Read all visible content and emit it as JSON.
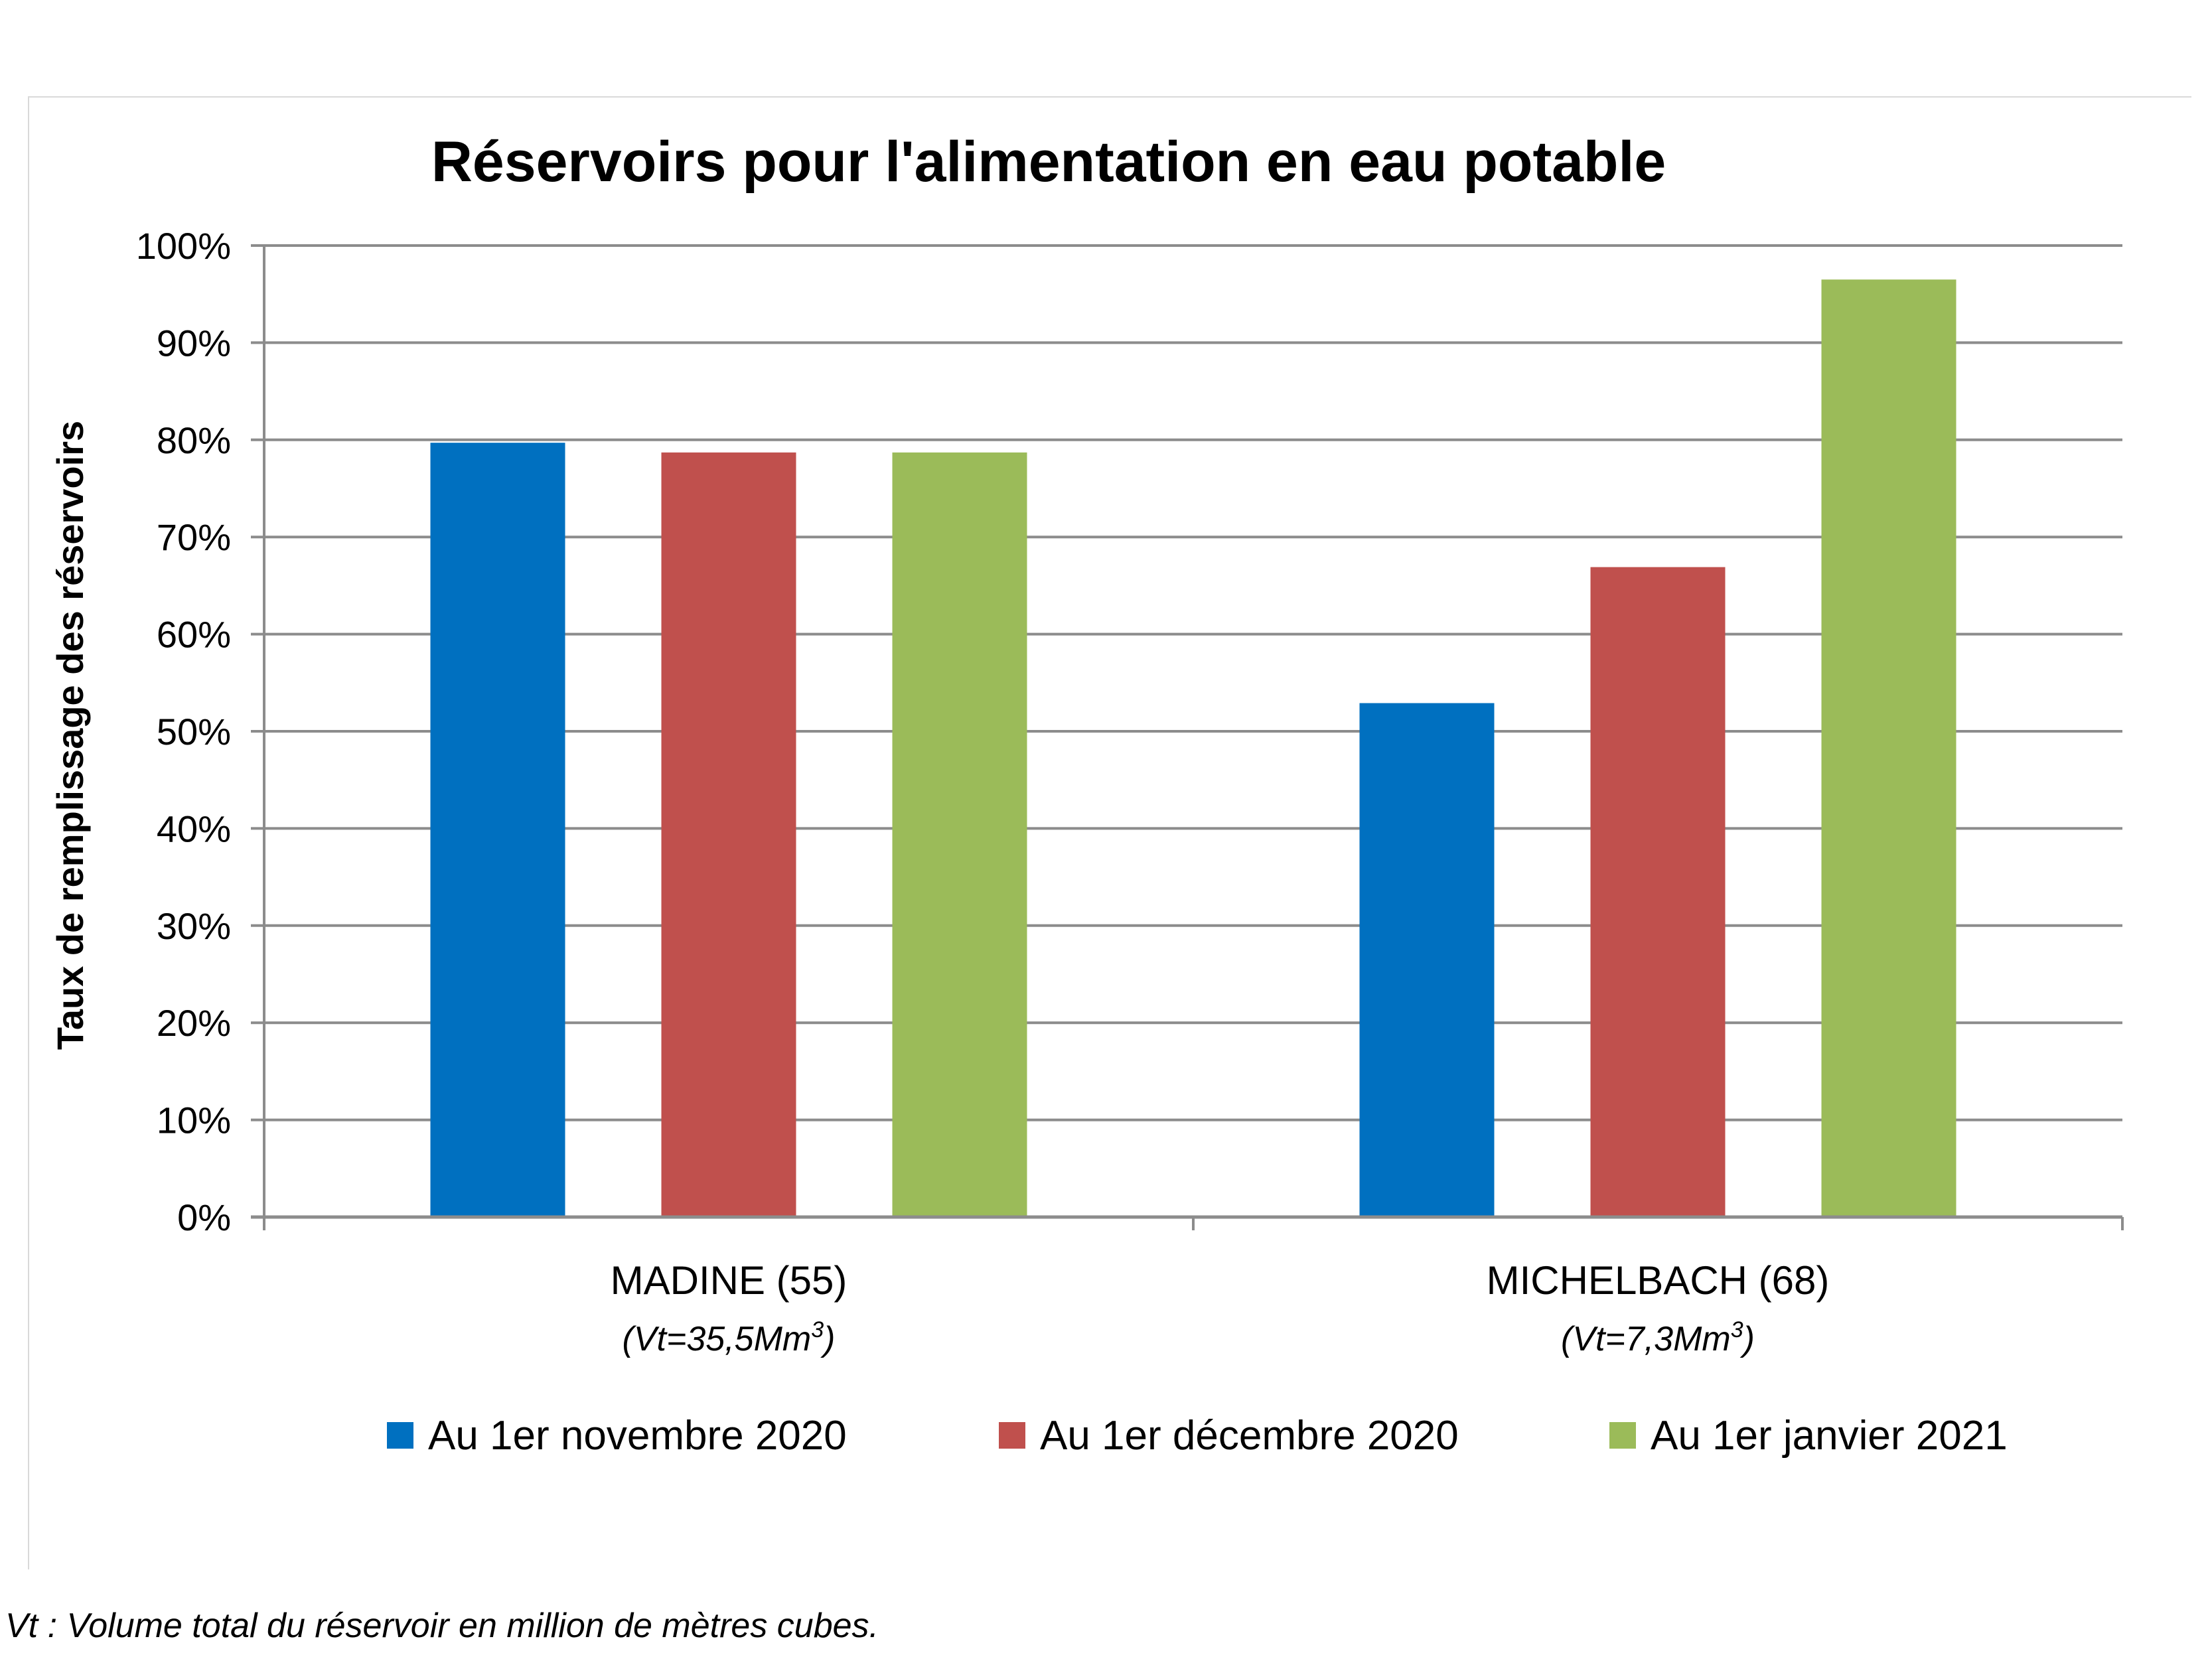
{
  "chart_data": {
    "type": "bar",
    "title": "Réservoirs pour l'alimentation en eau potable",
    "ylabel": "Taux de remplissage des réservoirs",
    "xlabel": "",
    "ylim": [
      0,
      100
    ],
    "y_ticks": [
      "0%",
      "10%",
      "20%",
      "30%",
      "40%",
      "50%",
      "60%",
      "70%",
      "80%",
      "90%",
      "100%"
    ],
    "categories": [
      {
        "name": "MADINE (55)",
        "sub_prefix": "(Vt=35,5Mm",
        "sub_sup": "3",
        "sub_suffix": ")"
      },
      {
        "name": "MICHELBACH (68)",
        "sub_prefix": "(Vt=7,3Mm",
        "sub_sup": "3",
        "sub_suffix": ")"
      }
    ],
    "series": [
      {
        "name": "Au 1er novembre 2020",
        "color": "#0070c0",
        "values": [
          79.7,
          52.9
        ]
      },
      {
        "name": "Au 1er décembre 2020",
        "color": "#c0504d",
        "values": [
          78.7,
          66.9
        ]
      },
      {
        "name": "Au 1er janvier 2021",
        "color": "#9bbb59",
        "values": [
          78.7,
          96.5
        ]
      }
    ],
    "grid": true,
    "legend_position": "bottom"
  },
  "footnote": "Vt : Volume total du réservoir en million de mètres cubes."
}
